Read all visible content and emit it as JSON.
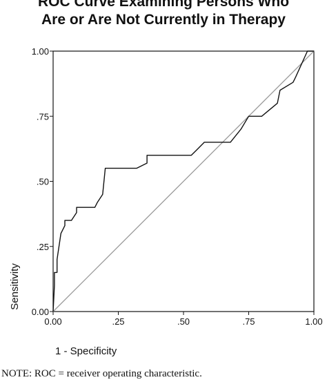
{
  "chart_data": {
    "type": "line",
    "title_lines": [
      "ROC Curve Examining Persons Who",
      "Are or Are Not Currently in Therapy"
    ],
    "xlabel": "1 - Specificity",
    "ylabel": "Sensitivity",
    "xlim": [
      0,
      1
    ],
    "ylim": [
      0,
      1
    ],
    "x_ticks": [
      "0.00",
      ".25",
      ".50",
      ".75",
      "1.00"
    ],
    "y_ticks": [
      "0.00",
      ".25",
      ".50",
      ".75",
      "1.00"
    ],
    "grid": false,
    "series": [
      {
        "color": "#111111",
        "x": [
          0.0,
          0.005,
          0.005,
          0.015,
          0.015,
          0.03,
          0.03,
          0.045,
          0.045,
          0.06,
          0.07,
          0.09,
          0.09,
          0.16,
          0.17,
          0.19,
          0.2,
          0.31,
          0.32,
          0.36,
          0.36,
          0.53,
          0.55,
          0.58,
          0.58,
          0.68,
          0.72,
          0.75,
          0.79,
          0.8,
          0.86,
          0.87,
          0.92,
          0.93,
          0.975,
          1.0
        ],
        "y": [
          0.0,
          0.1,
          0.15,
          0.15,
          0.2,
          0.3,
          0.3,
          0.33,
          0.35,
          0.35,
          0.35,
          0.38,
          0.4,
          0.4,
          0.42,
          0.45,
          0.55,
          0.55,
          0.55,
          0.57,
          0.6,
          0.6,
          0.62,
          0.65,
          0.65,
          0.65,
          0.7,
          0.75,
          0.75,
          0.75,
          0.8,
          0.85,
          0.88,
          0.9,
          1.0,
          1.0
        ]
      },
      {
        "color": "#9a9a9a",
        "x": [
          0,
          1
        ],
        "y": [
          0,
          1
        ]
      }
    ]
  },
  "note": "NOTE: ROC = receiver operating characteristic."
}
